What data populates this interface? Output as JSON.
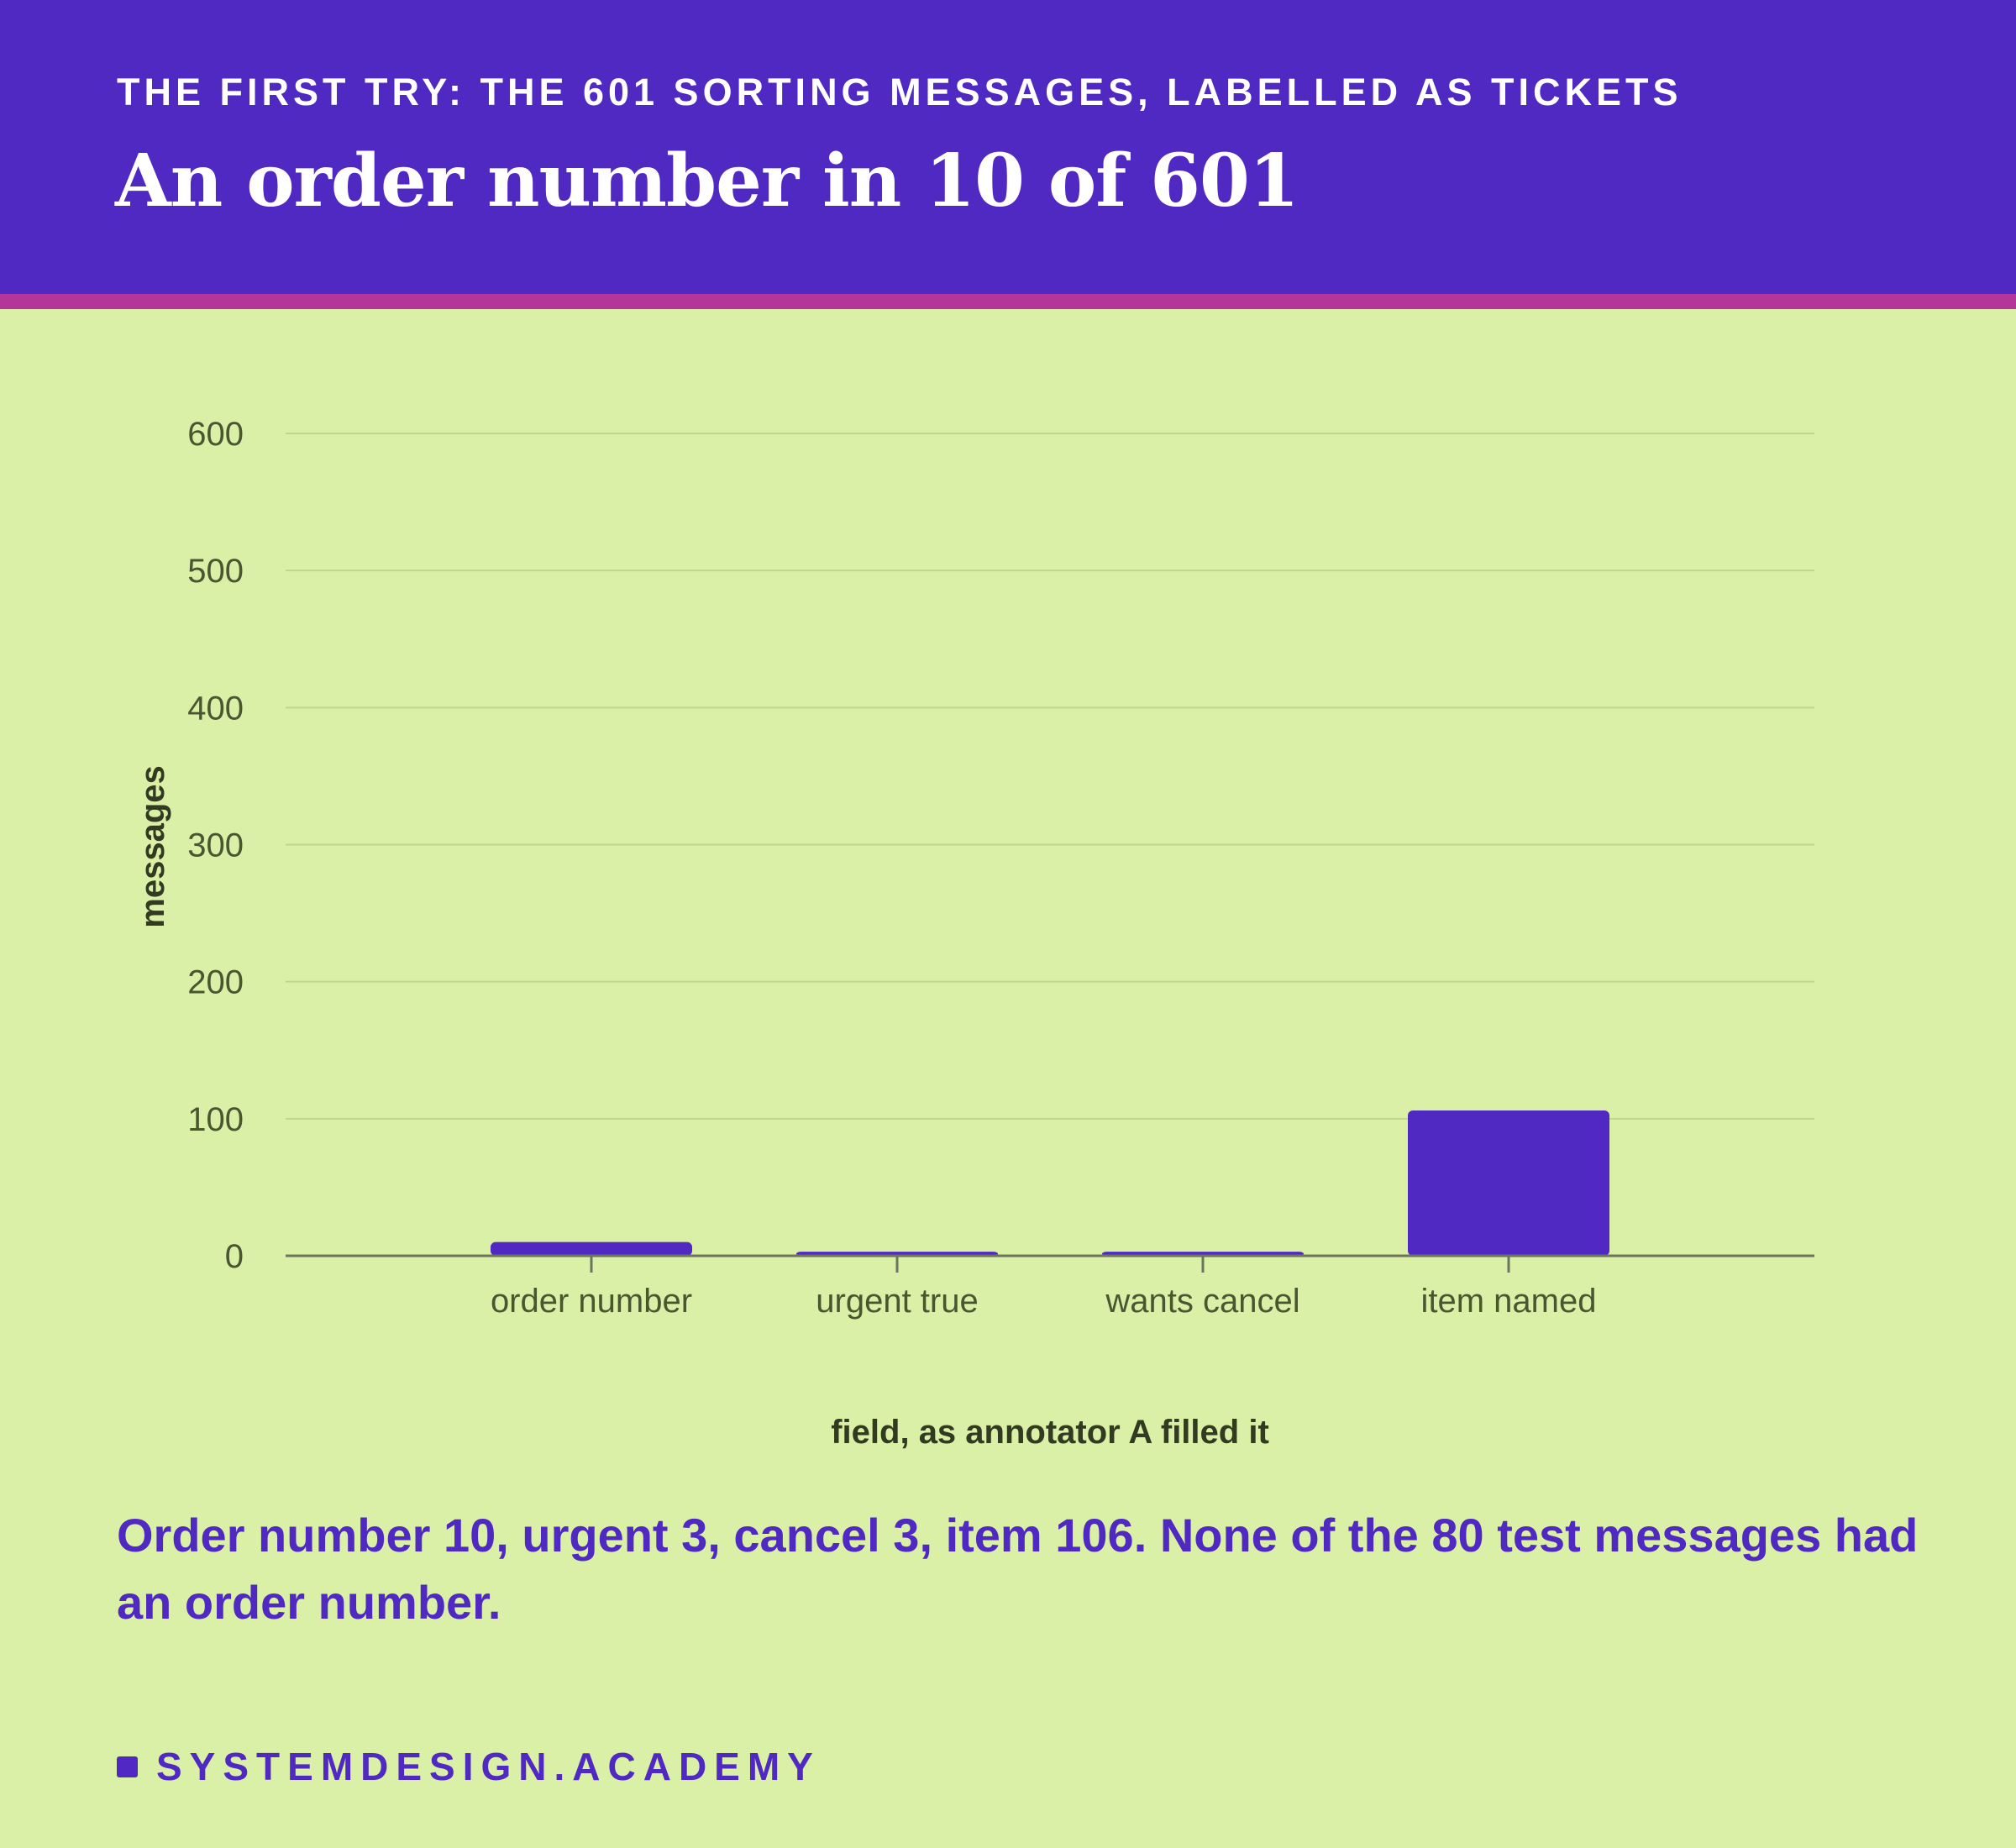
{
  "header": {
    "eyebrow": "THE FIRST TRY: THE 601 SORTING MESSAGES, LABELLED AS TICKETS",
    "title": "An order number in 10 of 601"
  },
  "chart_data": {
    "type": "bar",
    "categories": [
      "order number",
      "urgent true",
      "wants cancel",
      "item named"
    ],
    "values": [
      10,
      3,
      3,
      106
    ],
    "xlabel": "field, as annotator A filled it",
    "ylabel": "messages",
    "ylim": [
      0,
      600
    ],
    "yticks": [
      0,
      100,
      200,
      300,
      400,
      500,
      600
    ],
    "grid": true,
    "legend": "none",
    "bar_color": "#5029c2"
  },
  "caption": "Order number 10, urgent 3, cancel 3, item 106. None of the 80 test messages had an order number.",
  "brand": "SYSTEMDESIGN.ACADEMY",
  "colors": {
    "header_bg": "#5029c2",
    "accent_stripe": "#b4369a",
    "page_bg": "#d9f0a6"
  }
}
